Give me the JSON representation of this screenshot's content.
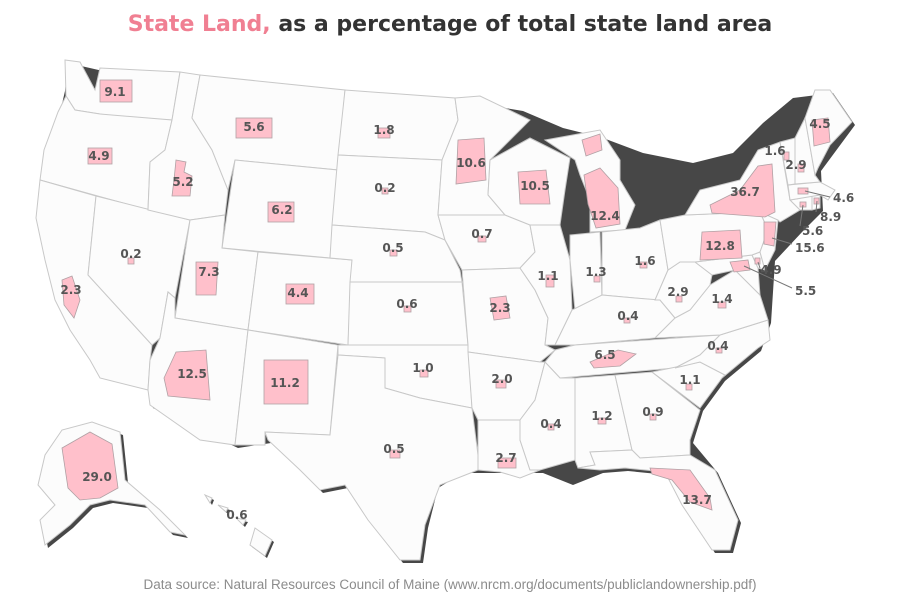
{
  "title": {
    "highlight": "State Land,",
    "rest": "as a percentage of total state land area"
  },
  "source": "Data source: Natural Resources Council of Maine (www.nrcm.org/documents/publiclandownership.pdf)",
  "colors": {
    "highlight": "#f07f92",
    "state_land": "#ffc0cb",
    "state_fill": "#fcfcfc",
    "state_border": "#c8c8c8",
    "label_text": "#555555"
  },
  "states": [
    {
      "id": "WA",
      "value": "9.1"
    },
    {
      "id": "OR",
      "value": "4.9"
    },
    {
      "id": "CA",
      "value": "2.3"
    },
    {
      "id": "NV",
      "value": "0.2"
    },
    {
      "id": "ID",
      "value": "5.2"
    },
    {
      "id": "MT",
      "value": "5.6"
    },
    {
      "id": "WY",
      "value": "6.2"
    },
    {
      "id": "UT",
      "value": "7.3"
    },
    {
      "id": "AZ",
      "value": "12.5"
    },
    {
      "id": "CO",
      "value": "4.4"
    },
    {
      "id": "NM",
      "value": "11.2"
    },
    {
      "id": "ND",
      "value": "1.8"
    },
    {
      "id": "SD",
      "value": "0.2"
    },
    {
      "id": "NE",
      "value": "0.5"
    },
    {
      "id": "KS",
      "value": "0.6"
    },
    {
      "id": "OK",
      "value": "1.0"
    },
    {
      "id": "TX",
      "value": "0.5"
    },
    {
      "id": "MN",
      "value": "10.6"
    },
    {
      "id": "IA",
      "value": "0.7"
    },
    {
      "id": "MO",
      "value": "2.3"
    },
    {
      "id": "AR",
      "value": "2.0"
    },
    {
      "id": "LA",
      "value": "2.7"
    },
    {
      "id": "WI",
      "value": "10.5"
    },
    {
      "id": "IL",
      "value": "1.1"
    },
    {
      "id": "MI",
      "value": "12.4"
    },
    {
      "id": "IN",
      "value": "1.3"
    },
    {
      "id": "OH",
      "value": "1.6"
    },
    {
      "id": "KY",
      "value": "0.4"
    },
    {
      "id": "TN",
      "value": "6.5"
    },
    {
      "id": "MS",
      "value": "0.4"
    },
    {
      "id": "AL",
      "value": "1.2"
    },
    {
      "id": "GA",
      "value": "0.9"
    },
    {
      "id": "FL",
      "value": "13.7"
    },
    {
      "id": "SC",
      "value": "1.1"
    },
    {
      "id": "NC",
      "value": "0.4"
    },
    {
      "id": "VA",
      "value": "1.4"
    },
    {
      "id": "WV",
      "value": "2.9"
    },
    {
      "id": "PA",
      "value": "12.8"
    },
    {
      "id": "NY",
      "value": "36.7"
    },
    {
      "id": "VT",
      "value": "1.6"
    },
    {
      "id": "NH",
      "value": "2.9"
    },
    {
      "id": "ME",
      "value": "4.5"
    },
    {
      "id": "MA",
      "value": "4.6"
    },
    {
      "id": "RI",
      "value": "8.9"
    },
    {
      "id": "CT",
      "value": "5.6"
    },
    {
      "id": "NJ",
      "value": "15.6"
    },
    {
      "id": "DE",
      "value": "4.9"
    },
    {
      "id": "MD",
      "value": "5.5"
    },
    {
      "id": "AK",
      "value": "29.0"
    },
    {
      "id": "HI",
      "value": "0.6"
    }
  ]
}
